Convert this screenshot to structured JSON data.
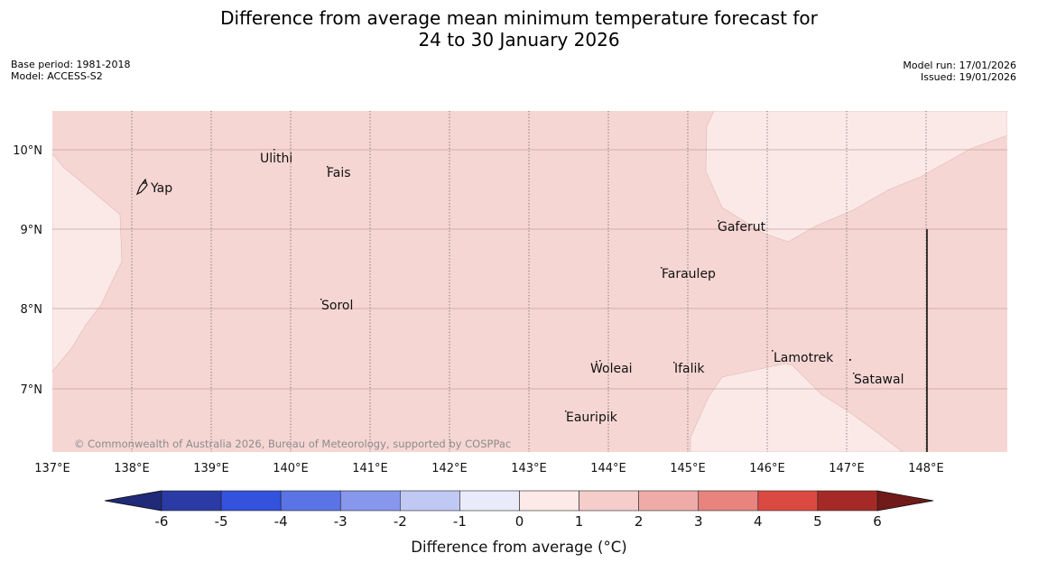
{
  "title": {
    "line1": "Difference from average mean minimum temperature forecast for",
    "line2": "24 to 30 January 2026"
  },
  "meta_left": {
    "base_period": "Base period: 1981-2018",
    "model": "Model: ACCESS-S2"
  },
  "meta_right": {
    "model_run": "Model run: 17/01/2026",
    "issued": "Issued: 19/01/2026"
  },
  "map": {
    "lon_labels": [
      "137°E",
      "138°E",
      "139°E",
      "140°E",
      "141°E",
      "142°E",
      "143°E",
      "144°E",
      "145°E",
      "146°E",
      "147°E",
      "148°E"
    ],
    "lat_labels": [
      "10°N",
      "9°N",
      "8°N",
      "7°N"
    ],
    "places": [
      {
        "name": "Yap"
      },
      {
        "name": "Ulithi"
      },
      {
        "name": "Fais"
      },
      {
        "name": "Sorol"
      },
      {
        "name": "Gaferut"
      },
      {
        "name": "Faraulep"
      },
      {
        "name": "Woleai"
      },
      {
        "name": "Ifalik"
      },
      {
        "name": "Lamotrek"
      },
      {
        "name": "Satawal"
      },
      {
        "name": "Eauripik"
      }
    ],
    "copyright": "© Commonwealth of Australia 2026, Bureau of Meteorology, supported by COSPPac",
    "colors": {
      "anomaly_0_1": "#fbe9e7",
      "anomaly_1_2": "#f5d6d3"
    }
  },
  "colorbar": {
    "ticks": [
      "-6",
      "-5",
      "-4",
      "-3",
      "-2",
      "-1",
      "0",
      "1",
      "2",
      "3",
      "4",
      "5",
      "6"
    ],
    "colors": [
      "#2a3ba6",
      "#3352dd",
      "#5a74e6",
      "#8797ec",
      "#c0c8f4",
      "#e9ebfa",
      "#fce9e8",
      "#f5cdcb",
      "#eeaba7",
      "#e8837e",
      "#db4a42",
      "#a52a27"
    ],
    "low_extend_color": "#1f2a78",
    "high_extend_color": "#701a1a",
    "label": "Difference from average (°C)"
  }
}
